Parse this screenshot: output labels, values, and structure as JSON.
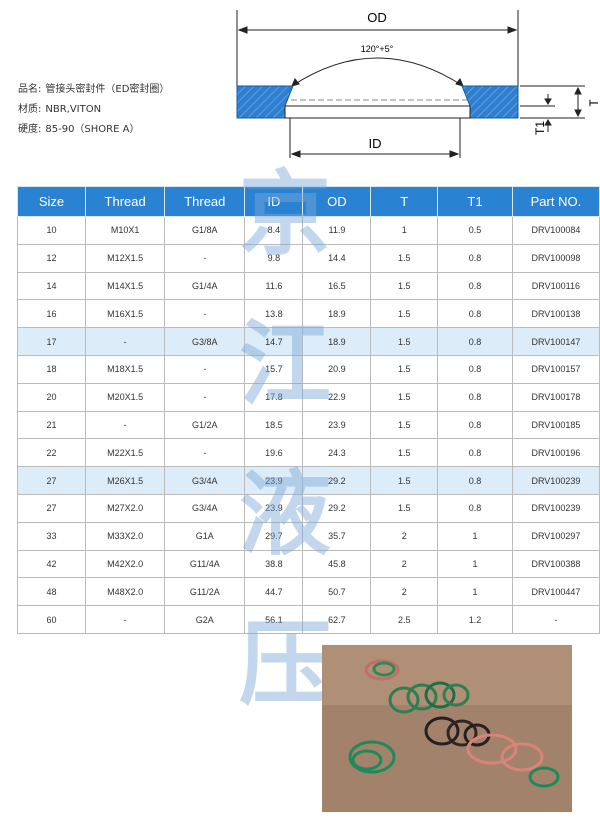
{
  "diagram": {
    "od": "OD",
    "angle": "120°+5°",
    "id": "ID",
    "t": "T",
    "t1": "T1"
  },
  "specs": [
    {
      "label": "品名:",
      "value": "管接头密封件（ED密封圈）"
    },
    {
      "label": "材质:",
      "value": "NBR,VITON"
    },
    {
      "label": "硬度:",
      "value": "85-90（SHORE A）"
    }
  ],
  "watermark": [
    "京",
    "江",
    "液",
    "压"
  ],
  "table": {
    "header": [
      "Size",
      "Thread",
      "Thread",
      "ID",
      "OD",
      "T",
      "T1",
      "Part NO."
    ],
    "highlight_rows": [
      4,
      9
    ],
    "rows": [
      [
        "10",
        "M10X1",
        "G1/8A",
        "8.4",
        "11.9",
        "1",
        "0.5",
        "DRV100084"
      ],
      [
        "12",
        "M12X1.5",
        "-",
        "9.8",
        "14.4",
        "1.5",
        "0.8",
        "DRV100098"
      ],
      [
        "14",
        "M14X1.5",
        "G1/4A",
        "11.6",
        "16.5",
        "1.5",
        "0.8",
        "DRV100116"
      ],
      [
        "16",
        "M16X1.5",
        "-",
        "13.8",
        "18.9",
        "1.5",
        "0.8",
        "DRV100138"
      ],
      [
        "17",
        "-",
        "G3/8A",
        "14.7",
        "18.9",
        "1.5",
        "0.8",
        "DRV100147"
      ],
      [
        "18",
        "M18X1.5",
        "-",
        "15.7",
        "20.9",
        "1.5",
        "0.8",
        "DRV100157"
      ],
      [
        "20",
        "M20X1.5",
        "-",
        "17.8",
        "22.9",
        "1.5",
        "0.8",
        "DRV100178"
      ],
      [
        "21",
        "-",
        "G1/2A",
        "18.5",
        "23.9",
        "1.5",
        "0.8",
        "DRV100185"
      ],
      [
        "22",
        "M22X1.5",
        "-",
        "19.6",
        "24.3",
        "1.5",
        "0.8",
        "DRV100196"
      ],
      [
        "27",
        "M26X1.5",
        "G3/4A",
        "23.9",
        "29.2",
        "1.5",
        "0.8",
        "DRV100239"
      ],
      [
        "27",
        "M27X2.0",
        "G3/4A",
        "23.9",
        "29.2",
        "1.5",
        "0.8",
        "DRV100239"
      ],
      [
        "33",
        "M33X2.0",
        "G1A",
        "29.7",
        "35.7",
        "2",
        "1",
        "DRV100297"
      ],
      [
        "42",
        "M42X2.0",
        "G11/4A",
        "38.8",
        "45.8",
        "2",
        "1",
        "DRV100388"
      ],
      [
        "48",
        "M48X2.0",
        "G11/2A",
        "44.7",
        "50.7",
        "2",
        "1",
        "DRV100447"
      ],
      [
        "60",
        "-",
        "G2A",
        "56.1",
        "62.7",
        "2.5",
        "1.2",
        "-"
      ]
    ]
  }
}
